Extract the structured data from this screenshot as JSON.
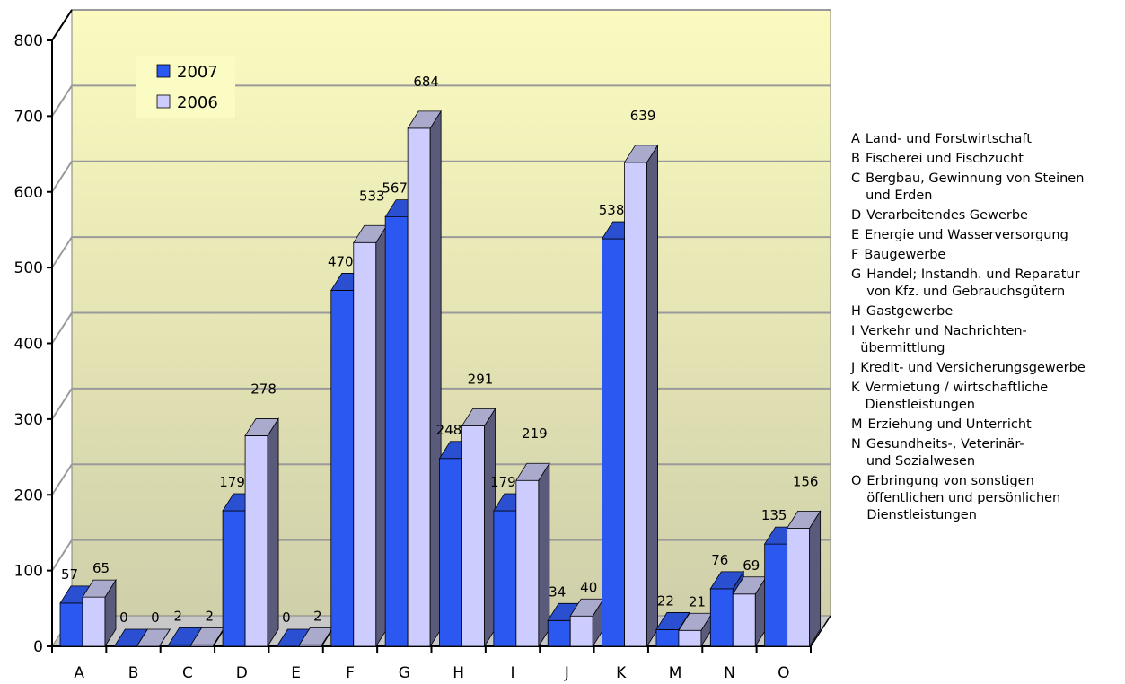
{
  "chart_data": {
    "type": "bar",
    "title": "",
    "xlabel": "",
    "ylabel": "",
    "ylim": [
      0,
      800
    ],
    "yticks": [
      0,
      100,
      200,
      300,
      400,
      500,
      600,
      700,
      800
    ],
    "grid": true,
    "legend_position": "top-left (inside plot)",
    "categories": [
      "A",
      "B",
      "C",
      "D",
      "E",
      "F",
      "G",
      "H",
      "I",
      "J",
      "K",
      "M",
      "N",
      "O"
    ],
    "series": [
      {
        "name": "2007",
        "color": "#2b58f0",
        "values": [
          57,
          0,
          2,
          179,
          0,
          470,
          567,
          248,
          179,
          34,
          538,
          22,
          76,
          135
        ]
      },
      {
        "name": "2006",
        "color": "#ccccff",
        "values": [
          65,
          0,
          2,
          278,
          2,
          533,
          684,
          291,
          219,
          40,
          639,
          21,
          69,
          156
        ]
      }
    ],
    "category_legend": [
      {
        "code": "A",
        "text": "Land- und Forstwirtschaft"
      },
      {
        "code": "B",
        "text": "Fischerei und Fischzucht"
      },
      {
        "code": "C",
        "text": "Bergbau, Gewinnung von Steinen\n und Erden"
      },
      {
        "code": "D",
        "text": "Verarbeitendes Gewerbe"
      },
      {
        "code": "E",
        "text": "Energie und Wasserversorgung"
      },
      {
        "code": "F",
        "text": "Baugewerbe"
      },
      {
        "code": "G",
        "text": "Handel; Instandh. und Reparatur\n  von Kfz. und Gebrauchsgütern"
      },
      {
        "code": "H",
        "text": "Gastgewerbe"
      },
      {
        "code": "I",
        "text": " Verkehr und Nachrichten-\n übermittlung"
      },
      {
        "code": "J",
        "text": "Kredit- und Versicherungsgewerbe"
      },
      {
        "code": "K",
        "text": "Vermietung / wirtschaftliche\n Dienstleistungen"
      },
      {
        "code": "M",
        "text": "Erziehung und Unterricht"
      },
      {
        "code": "N",
        "text": "Gesundheits-, Veterinär-\n und Sozialwesen"
      },
      {
        "code": "O",
        "text": "Erbringung von sonstigen\n öffentlichen und persönlichen\n Dienstleistungen"
      }
    ]
  }
}
